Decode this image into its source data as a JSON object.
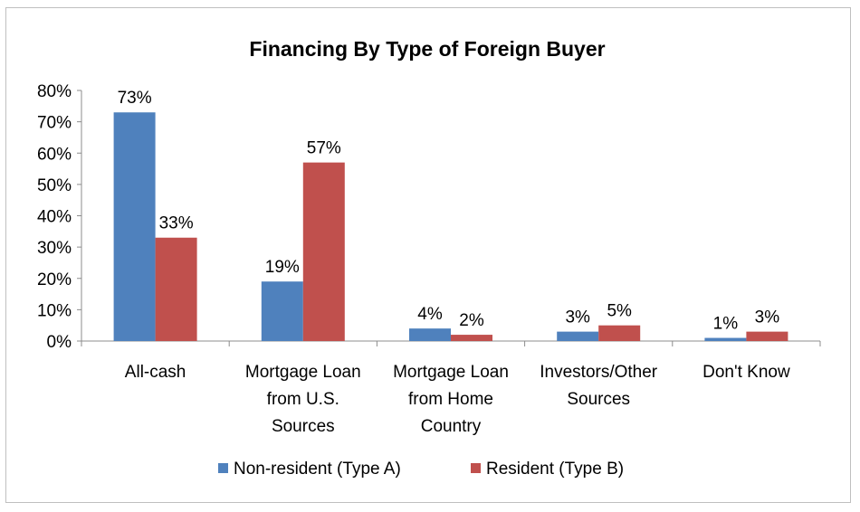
{
  "chart_data": {
    "type": "bar",
    "title": "Financing By Type of Foreign Buyer",
    "categories": [
      [
        "All-cash"
      ],
      [
        "Mortgage Loan",
        "from U.S.",
        "Sources"
      ],
      [
        "Mortgage Loan",
        "from Home",
        "Country"
      ],
      [
        "Investors/Other",
        "Sources"
      ],
      [
        "Don't Know"
      ]
    ],
    "series": [
      {
        "name": "Non-resident (Type A)",
        "color": "#4f81bd",
        "values": [
          73,
          19,
          4,
          3,
          1
        ],
        "labels": [
          "73%",
          "19%",
          "4%",
          "3%",
          "1%"
        ]
      },
      {
        "name": "Resident (Type B)",
        "color": "#c0504d",
        "values": [
          33,
          57,
          2,
          5,
          3
        ],
        "labels": [
          "33%",
          "57%",
          "2%",
          "5%",
          "3%"
        ]
      }
    ],
    "y_ticks": [
      "0%",
      "10%",
      "20%",
      "30%",
      "40%",
      "50%",
      "60%",
      "70%",
      "80%"
    ],
    "ylim": [
      0,
      80
    ],
    "grid": false,
    "legend_position": "bottom"
  }
}
